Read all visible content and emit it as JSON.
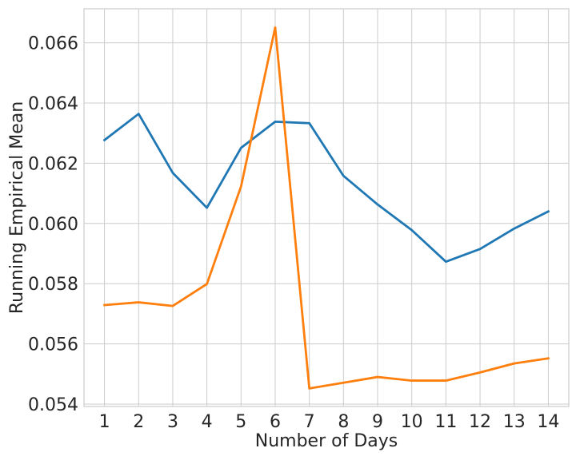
{
  "chart_data": {
    "type": "line",
    "title": "",
    "xlabel": "Number of Days",
    "ylabel": "Running Empirical Mean",
    "x": [
      1,
      2,
      3,
      4,
      5,
      6,
      7,
      8,
      9,
      10,
      11,
      12,
      13,
      14
    ],
    "xlim": [
      0.4,
      14.6
    ],
    "ylim": [
      0.05392,
      0.06713
    ],
    "yticks": [
      0.054,
      0.056,
      0.058,
      0.06,
      0.062,
      0.064,
      0.066
    ],
    "ytick_labels": [
      "0.054",
      "0.056",
      "0.058",
      "0.060",
      "0.062",
      "0.064",
      "0.066"
    ],
    "xtick_labels": [
      "1",
      "2",
      "3",
      "4",
      "5",
      "6",
      "7",
      "8",
      "9",
      "10",
      "11",
      "12",
      "13",
      "14"
    ],
    "grid": true,
    "legend": "none",
    "series": [
      {
        "color": "#1f77b4",
        "values": [
          0.06277,
          0.06364,
          0.06168,
          0.06052,
          0.06251,
          0.06338,
          0.06333,
          0.06158,
          0.06063,
          0.05978,
          0.05873,
          0.05915,
          0.05983,
          0.0604
        ]
      },
      {
        "color": "#ff7f0e",
        "values": [
          0.05729,
          0.05738,
          0.05726,
          0.05799,
          0.06123,
          0.06651,
          0.05452,
          0.05471,
          0.0549,
          0.05478,
          0.05478,
          0.05505,
          0.05535,
          0.05552
        ]
      }
    ]
  }
}
